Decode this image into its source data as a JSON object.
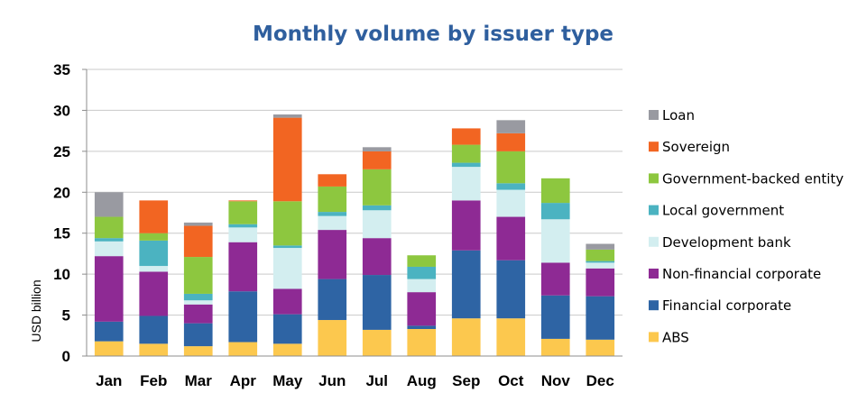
{
  "chart_data": {
    "type": "bar",
    "stacked": true,
    "title": "Monthly volume by issuer type",
    "xlabel": "",
    "ylabel": "USD billion",
    "ylim": [
      0,
      35
    ],
    "yticks": [
      0,
      5,
      10,
      15,
      20,
      25,
      30,
      35
    ],
    "grid": true,
    "legend_position": "right",
    "categories": [
      "Jan",
      "Feb",
      "Mar",
      "Apr",
      "May",
      "Jun",
      "Jul",
      "Aug",
      "Sep",
      "Oct",
      "Nov",
      "Dec"
    ],
    "series": [
      {
        "name": "ABS",
        "color": "#fcc84e",
        "values": [
          1.8,
          1.5,
          1.2,
          1.7,
          1.5,
          4.4,
          3.2,
          3.3,
          4.6,
          4.6,
          2.1,
          2.0
        ]
      },
      {
        "name": "Financial corporate",
        "color": "#2e64a4",
        "values": [
          2.4,
          3.4,
          2.8,
          6.2,
          3.6,
          5.0,
          6.7,
          0.4,
          8.3,
          7.1,
          5.3,
          5.3
        ]
      },
      {
        "name": "Non-financial corporate",
        "color": "#8e2a94",
        "values": [
          8.0,
          5.4,
          2.3,
          6.0,
          3.1,
          6.0,
          4.5,
          4.1,
          6.1,
          5.3,
          4.0,
          3.4
        ]
      },
      {
        "name": "Development bank",
        "color": "#d3eef0",
        "values": [
          1.8,
          0.7,
          0.5,
          1.8,
          5.0,
          1.7,
          3.4,
          1.6,
          4.1,
          3.3,
          5.3,
          0.7
        ]
      },
      {
        "name": "Local government",
        "color": "#4bb3c1",
        "values": [
          0.4,
          3.1,
          0.8,
          0.4,
          0.3,
          0.5,
          0.6,
          1.5,
          0.5,
          0.8,
          2.0,
          0.2
        ]
      },
      {
        "name": "Government-backed entity",
        "color": "#8dc73f",
        "values": [
          2.6,
          0.9,
          4.5,
          2.8,
          5.4,
          3.1,
          4.4,
          1.4,
          2.2,
          3.9,
          3.0,
          1.4
        ]
      },
      {
        "name": "Sovereign",
        "color": "#f26522",
        "values": [
          0.0,
          4.0,
          3.8,
          0.1,
          10.2,
          1.5,
          2.2,
          0.0,
          2.0,
          2.2,
          0.0,
          0.0
        ]
      },
      {
        "name": "Loan",
        "color": "#999aa1",
        "values": [
          3.0,
          0.0,
          0.4,
          0.0,
          0.4,
          0.0,
          0.5,
          0.0,
          0.0,
          1.6,
          0.0,
          0.7
        ]
      }
    ]
  }
}
